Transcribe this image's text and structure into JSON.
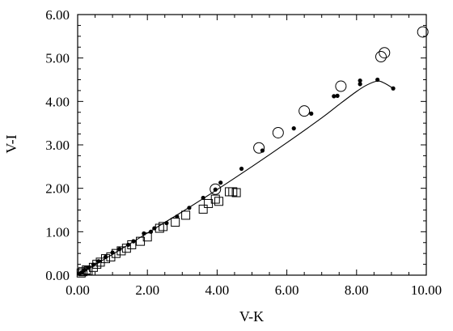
{
  "chart_data": {
    "type": "scatter",
    "title": "",
    "xlabel": "V-K",
    "ylabel": "V-I",
    "xlim": [
      0,
      10
    ],
    "ylim": [
      0,
      6
    ],
    "x_ticks": [
      "0.00",
      "2.00",
      "4.00",
      "6.00",
      "8.00",
      "10.00"
    ],
    "y_ticks": [
      "0.00",
      "1.00",
      "2.00",
      "3.00",
      "4.00",
      "5.00",
      "6.00"
    ],
    "grid": false,
    "legend": "none",
    "series": [
      {
        "marker": "filled-circle",
        "color": "#000000",
        "points": [
          [
            0.05,
            0.03
          ],
          [
            0.12,
            0.07
          ],
          [
            0.2,
            0.12
          ],
          [
            0.3,
            0.17
          ],
          [
            0.45,
            0.24
          ],
          [
            0.6,
            0.32
          ],
          [
            0.8,
            0.42
          ],
          [
            1.0,
            0.52
          ],
          [
            1.2,
            0.6
          ],
          [
            1.45,
            0.7
          ],
          [
            1.6,
            0.78
          ],
          [
            1.9,
            0.96
          ],
          [
            2.1,
            1.0
          ],
          [
            2.2,
            1.08
          ],
          [
            2.55,
            1.2
          ],
          [
            2.85,
            1.35
          ],
          [
            3.2,
            1.55
          ],
          [
            3.6,
            1.78
          ],
          [
            3.95,
            1.97
          ],
          [
            4.1,
            2.13
          ],
          [
            4.7,
            2.45
          ],
          [
            5.3,
            2.87
          ],
          [
            6.2,
            3.38
          ],
          [
            6.7,
            3.72
          ],
          [
            7.35,
            4.12
          ],
          [
            7.45,
            4.13
          ],
          [
            8.1,
            4.4
          ],
          [
            8.1,
            4.48
          ],
          [
            8.6,
            4.5
          ],
          [
            9.05,
            4.3
          ]
        ]
      },
      {
        "marker": "open-circle",
        "color": "#000000",
        "points": [
          [
            3.95,
            1.98
          ],
          [
            5.2,
            2.93
          ],
          [
            5.75,
            3.28
          ],
          [
            6.5,
            3.78
          ],
          [
            7.55,
            4.35
          ],
          [
            8.7,
            5.03
          ],
          [
            8.8,
            5.12
          ],
          [
            9.9,
            5.6
          ]
        ]
      },
      {
        "marker": "open-square",
        "color": "#000000",
        "points": [
          [
            0.1,
            0.05
          ],
          [
            0.15,
            0.08
          ],
          [
            0.25,
            0.12
          ],
          [
            0.3,
            0.1
          ],
          [
            0.45,
            0.18
          ],
          [
            0.55,
            0.25
          ],
          [
            0.65,
            0.3
          ],
          [
            0.8,
            0.38
          ],
          [
            0.95,
            0.42
          ],
          [
            1.1,
            0.5
          ],
          [
            1.25,
            0.56
          ],
          [
            1.4,
            0.62
          ],
          [
            1.55,
            0.7
          ],
          [
            1.8,
            0.78
          ],
          [
            2.0,
            0.88
          ],
          [
            2.35,
            1.08
          ],
          [
            2.45,
            1.12
          ],
          [
            2.8,
            1.22
          ],
          [
            3.1,
            1.38
          ],
          [
            3.6,
            1.52
          ],
          [
            3.75,
            1.65
          ],
          [
            3.95,
            1.75
          ],
          [
            4.05,
            1.7
          ],
          [
            4.35,
            1.92
          ],
          [
            4.45,
            1.92
          ],
          [
            4.55,
            1.9
          ]
        ]
      }
    ],
    "fit_curve": [
      [
        0,
        0
      ],
      [
        1,
        0.48
      ],
      [
        2,
        0.97
      ],
      [
        3,
        1.46
      ],
      [
        4,
        1.97
      ],
      [
        5,
        2.5
      ],
      [
        6,
        3.05
      ],
      [
        7,
        3.62
      ],
      [
        7.5,
        3.93
      ],
      [
        8,
        4.23
      ],
      [
        8.3,
        4.38
      ],
      [
        8.6,
        4.47
      ],
      [
        8.8,
        4.42
      ],
      [
        9.05,
        4.3
      ]
    ]
  }
}
